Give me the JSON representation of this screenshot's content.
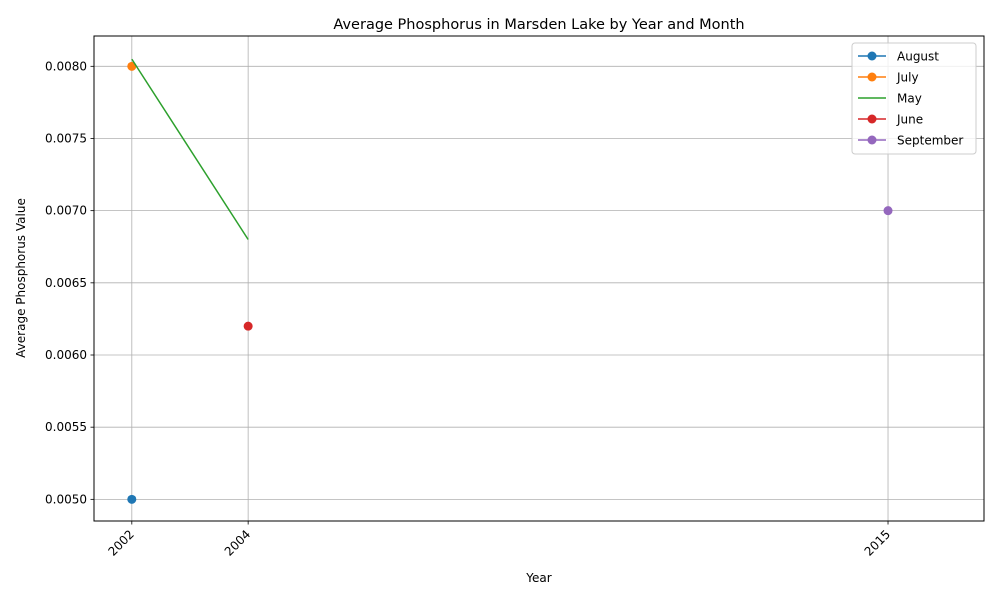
{
  "chart_data": {
    "type": "line",
    "title": "Average Phosphorus in Marsden Lake by Year and Month",
    "xlabel": "Year",
    "ylabel": "Average Phosphorus Value",
    "x_ticks": [
      "2002",
      "2004",
      "2015"
    ],
    "y_ticks": [
      "0.0050",
      "0.0055",
      "0.0060",
      "0.0065",
      "0.0070",
      "0.0075",
      "0.0080"
    ],
    "xlim": [
      2001.35,
      2016.65
    ],
    "ylim": [
      0.00485,
      0.00821
    ],
    "grid": true,
    "legend_position": "top-right",
    "series": [
      {
        "name": "August",
        "color": "#1f77b4",
        "markers": true,
        "points": [
          {
            "x": 2002,
            "y": 0.005
          }
        ]
      },
      {
        "name": "July",
        "color": "#ff7f0e",
        "markers": true,
        "points": [
          {
            "x": 2002,
            "y": 0.008
          }
        ]
      },
      {
        "name": "May",
        "color": "#2ca02c",
        "markers": false,
        "points": [
          {
            "x": 2002,
            "y": 0.00805
          },
          {
            "x": 2004,
            "y": 0.0068
          }
        ]
      },
      {
        "name": "June",
        "color": "#d62728",
        "markers": true,
        "points": [
          {
            "x": 2004,
            "y": 0.0062
          }
        ]
      },
      {
        "name": "September",
        "color": "#9467bd",
        "markers": true,
        "points": [
          {
            "x": 2015,
            "y": 0.007
          }
        ]
      }
    ]
  }
}
